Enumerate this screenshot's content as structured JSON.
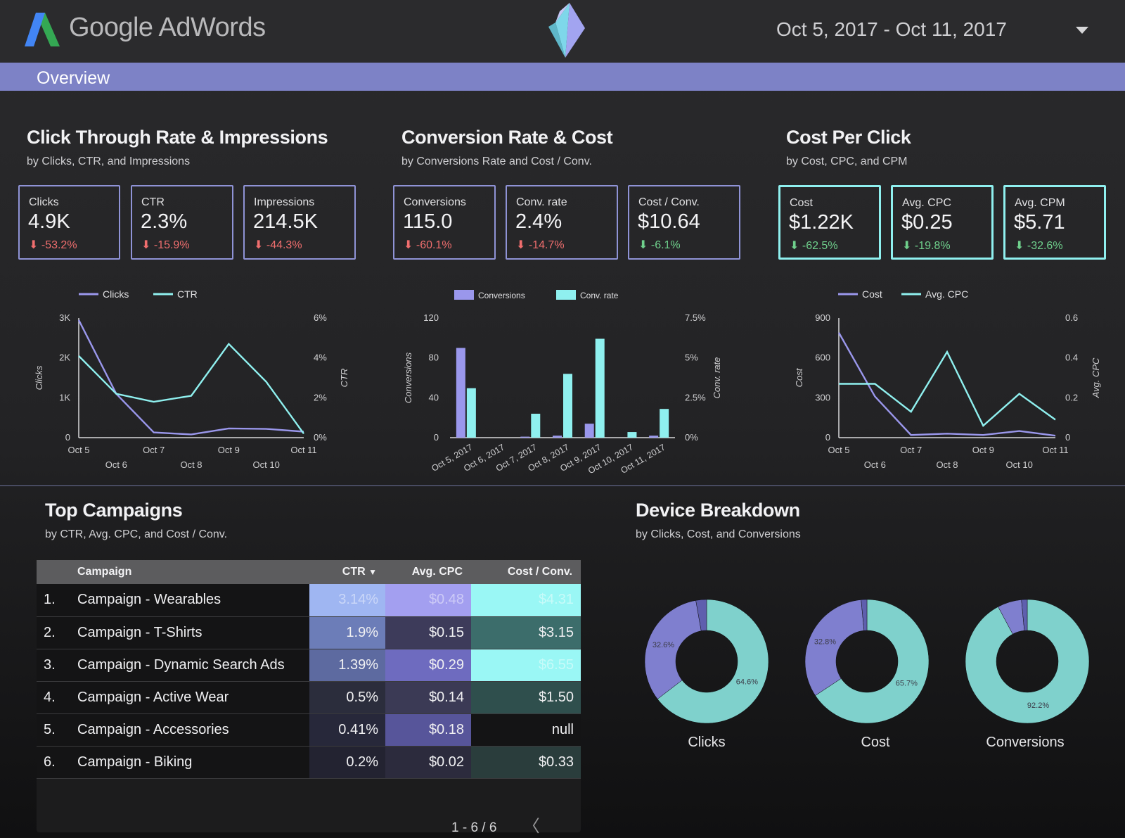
{
  "header": {
    "brand": "Google AdWords",
    "date_range": "Oct 5, 2017 - Oct 11, 2017",
    "brand_colors": {
      "blue": "#4285f4",
      "green": "#34a853",
      "yellow": "#fbbc05"
    }
  },
  "overview": {
    "label": "Overview",
    "color": "#7d82c6"
  },
  "sections": {
    "ctr": {
      "title": "Click Through Rate & Impressions",
      "subtitle": "by Clicks, CTR, and Impressions",
      "kpis": [
        {
          "label": "Clicks",
          "value": "4.9K",
          "delta": "-53.2%"
        },
        {
          "label": "CTR",
          "value": "2.3%",
          "delta": "-15.9%"
        },
        {
          "label": "Impressions",
          "value": "214.5K",
          "delta": "-44.3%"
        }
      ]
    },
    "conv": {
      "title": "Conversion Rate & Cost",
      "subtitle": "by Conversions Rate and Cost / Conv.",
      "kpis": [
        {
          "label": "Conversions",
          "value": "115.0",
          "delta": "-60.1%"
        },
        {
          "label": "Conv. rate",
          "value": "2.4%",
          "delta": "-14.7%"
        },
        {
          "label": "Cost / Conv.",
          "value": "$10.64",
          "delta": "-6.1%"
        }
      ]
    },
    "cpc": {
      "title": "Cost Per Click",
      "subtitle": "by Cost, CPC, and CPM",
      "kpis": [
        {
          "label": "Cost",
          "value": "$1.22K",
          "delta": "-62.5%"
        },
        {
          "label": "Avg. CPC",
          "value": "$0.25",
          "delta": "-19.8%"
        },
        {
          "label": "Avg. CPM",
          "value": "$5.71",
          "delta": "-32.6%"
        }
      ]
    },
    "campaigns": {
      "title": "Top Campaigns",
      "subtitle": "by CTR, Avg. CPC, and Cost / Conv."
    },
    "device": {
      "title": "Device Breakdown",
      "subtitle": "by Clicks, Cost, and Conversions"
    }
  },
  "colors": {
    "purple": "#9a97ec",
    "cyan": "#8ff0ef",
    "negative": "#f06e6e",
    "positive": "#6fd08c",
    "donut_teal": "#7fd1cc",
    "donut_purple": "#7f7fcf"
  },
  "chart_data": [
    {
      "type": "line",
      "categories": [
        "Oct 5",
        "Oct 6",
        "Oct 7",
        "Oct 8",
        "Oct 9",
        "Oct 10",
        "Oct 11"
      ],
      "series": [
        {
          "name": "Clicks",
          "axis": "left",
          "values": [
            2950,
            1100,
            130,
            80,
            230,
            220,
            150
          ]
        },
        {
          "name": "CTR",
          "axis": "right",
          "values": [
            4.1,
            2.2,
            1.8,
            2.1,
            4.7,
            2.8,
            0.2
          ]
        }
      ],
      "ylabel": "Clicks",
      "ylabel2": "CTR",
      "yticks": [
        "0",
        "1K",
        "2K",
        "3K"
      ],
      "y2ticks": [
        "0%",
        "2%",
        "4%",
        "6%"
      ],
      "ylim": [
        0,
        3000
      ],
      "y2lim": [
        0,
        6
      ],
      "grid": false,
      "legend": "top"
    },
    {
      "type": "bar",
      "categories": [
        "Oct 5, 2017",
        "Oct 6, 2017",
        "Oct 7, 2017",
        "Oct 8, 2017",
        "Oct 9, 2017",
        "Oct 10, 2017",
        "Oct 11, 2017"
      ],
      "series": [
        {
          "name": "Conversions",
          "axis": "left",
          "values": [
            90,
            0,
            1,
            2,
            14,
            0,
            2
          ]
        },
        {
          "name": "Conv. rate",
          "axis": "right",
          "values": [
            3.1,
            0,
            1.5,
            4.0,
            6.2,
            0.35,
            1.8
          ]
        }
      ],
      "ylabel": "Conversions",
      "ylabel2": "Conv. rate",
      "yticks": [
        "0",
        "40",
        "80",
        "120"
      ],
      "y2ticks": [
        "0%",
        "2.5%",
        "5%",
        "7.5%"
      ],
      "ylim": [
        0,
        120
      ],
      "y2lim": [
        0,
        7.5
      ],
      "grid": false,
      "legend": "top"
    },
    {
      "type": "line",
      "categories": [
        "Oct 5",
        "Oct 6",
        "Oct 7",
        "Oct 8",
        "Oct 9",
        "Oct 10",
        "Oct 11"
      ],
      "series": [
        {
          "name": "Cost",
          "axis": "left",
          "values": [
            790,
            310,
            20,
            30,
            20,
            50,
            15
          ]
        },
        {
          "name": "Avg. CPC",
          "axis": "right",
          "values": [
            0.27,
            0.27,
            0.13,
            0.43,
            0.06,
            0.22,
            0.09
          ]
        }
      ],
      "ylabel": "Cost",
      "ylabel2": "Avg. CPC",
      "yticks": [
        "0",
        "300",
        "600",
        "900"
      ],
      "y2ticks": [
        "0",
        "0.2",
        "0.4",
        "0.6"
      ],
      "ylim": [
        0,
        900
      ],
      "y2lim": [
        0,
        0.6
      ],
      "grid": false,
      "legend": "top"
    },
    {
      "type": "table",
      "columns": [
        "Campaign",
        "CTR",
        "Avg. CPC",
        "Cost / Conv."
      ],
      "rows": [
        {
          "idx": "1.",
          "name": "Campaign - Wearables",
          "ctr": "3.14%",
          "cpc": "$0.48",
          "cost_conv": "$4.31"
        },
        {
          "idx": "2.",
          "name": "Campaign - T-Shirts",
          "ctr": "1.9%",
          "cpc": "$0.15",
          "cost_conv": "$3.15"
        },
        {
          "idx": "3.",
          "name": "Campaign - Dynamic Search Ads",
          "ctr": "1.39%",
          "cpc": "$0.29",
          "cost_conv": "$6.55"
        },
        {
          "idx": "4.",
          "name": "Campaign - Active Wear",
          "ctr": "0.5%",
          "cpc": "$0.14",
          "cost_conv": "$1.50"
        },
        {
          "idx": "5.",
          "name": "Campaign - Accessories",
          "ctr": "0.41%",
          "cpc": "$0.18",
          "cost_conv": "null"
        },
        {
          "idx": "6.",
          "name": "Campaign - Biking",
          "ctr": "0.2%",
          "cpc": "$0.02",
          "cost_conv": "$0.33"
        }
      ],
      "pager": "1 - 6 / 6"
    },
    {
      "type": "pie",
      "charts": [
        {
          "label": "Clicks",
          "slices": [
            {
              "value": 64.6,
              "text": "64.6%"
            },
            {
              "value": 32.6,
              "text": "32.6%"
            },
            {
              "value": 2.8,
              "text": ""
            }
          ]
        },
        {
          "label": "Cost",
          "slices": [
            {
              "value": 65.7,
              "text": "65.7%"
            },
            {
              "value": 32.8,
              "text": "32.8%"
            },
            {
              "value": 1.5,
              "text": ""
            }
          ]
        },
        {
          "label": "Conversions",
          "slices": [
            {
              "value": 92.2,
              "text": "92.2%"
            },
            {
              "value": 6.3,
              "text": ""
            },
            {
              "value": 1.5,
              "text": ""
            }
          ]
        }
      ]
    }
  ]
}
